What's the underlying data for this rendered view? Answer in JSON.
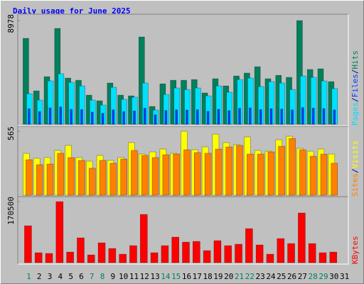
{
  "legend_separator": "/",
  "chart_data": [
    {
      "type": "bar",
      "title": "Daily usage for June 2025",
      "ylim": [
        0,
        8978
      ],
      "yticks": [
        8978
      ],
      "series": [
        {
          "name": "Pages",
          "color": "#00e0ff",
          "values": [
            2640,
            2090,
            3750,
            4370,
            3630,
            3320,
            2090,
            1660,
            3200,
            2150,
            2340,
            3570,
            1230,
            2580,
            3140,
            3010,
            3140,
            2460,
            3320,
            2770,
            3870,
            4000,
            3260,
            3690,
            3570,
            3010,
            4180,
            4060,
            3750,
            3080,
            null
          ]
        },
        {
          "name": "Files",
          "color": "#0040ff",
          "values": [
            1350,
            1100,
            1420,
            1500,
            1300,
            1280,
            1050,
            950,
            1250,
            1100,
            1150,
            1400,
            820,
            1200,
            1250,
            1230,
            1260,
            1120,
            1300,
            1180,
            1380,
            1420,
            1280,
            1350,
            1320,
            1250,
            1450,
            1400,
            1360,
            1240,
            null
          ]
        },
        {
          "name": "Hits",
          "color": "#00805c",
          "values": [
            7440,
            2890,
            4120,
            8300,
            4000,
            3810,
            2520,
            2030,
            3570,
            2520,
            2460,
            7560,
            1540,
            3500,
            3810,
            3810,
            3870,
            2710,
            3940,
            3320,
            4180,
            4430,
            4980,
            3940,
            4240,
            4060,
            8978,
            4740,
            4800,
            3690,
            null
          ]
        }
      ]
    },
    {
      "type": "bar",
      "ylim": [
        0,
        565
      ],
      "yticks": [
        565
      ],
      "series": [
        {
          "name": "Sites",
          "color": "#ff8000",
          "values": [
            314,
            270,
            276,
            371,
            333,
            308,
            239,
            308,
            283,
            320,
            396,
            352,
            333,
            358,
            364,
            402,
            377,
            371,
            408,
            427,
            440,
            364,
            364,
            383,
            433,
            502,
            402,
            345,
            364,
            283,
            null
          ]
        },
        {
          "name": "Visits",
          "color": "#ffff00",
          "values": [
            370,
            327,
            333,
            396,
            440,
            333,
            301,
            352,
            308,
            333,
            465,
            364,
            383,
            408,
            370,
            565,
            402,
            427,
            540,
            465,
            446,
            515,
            396,
            389,
            490,
            521,
            414,
            389,
            408,
            364,
            null
          ]
        }
      ]
    },
    {
      "type": "bar",
      "ylim": [
        0,
        170500
      ],
      "yticks": [
        170500
      ],
      "series": [
        {
          "name": "KBytes",
          "color": "#ff0000",
          "values": [
            103100,
            27800,
            25800,
            170500,
            29700,
            69400,
            21800,
            55500,
            39700,
            23800,
            47600,
            134800,
            27800,
            47600,
            71400,
            57500,
            59500,
            33700,
            61500,
            47600,
            51600,
            95200,
            49600,
            23800,
            67400,
            53500,
            138800,
            53500,
            27800,
            29700,
            null
          ]
        }
      ],
      "categories": [
        "1",
        "2",
        "3",
        "4",
        "5",
        "6",
        "7",
        "8",
        "9",
        "10",
        "11",
        "12",
        "13",
        "14",
        "15",
        "16",
        "17",
        "18",
        "19",
        "20",
        "21",
        "22",
        "23",
        "24",
        "25",
        "26",
        "27",
        "28",
        "29",
        "30",
        "31"
      ],
      "category_colors": [
        "#00805c",
        "#000000",
        "#000000",
        "#000000",
        "#000000",
        "#000000",
        "#00805c",
        "#00805c",
        "#000000",
        "#000000",
        "#000000",
        "#000000",
        "#000000",
        "#00805c",
        "#00805c",
        "#000000",
        "#000000",
        "#000000",
        "#000000",
        "#000000",
        "#00805c",
        "#00805c",
        "#000000",
        "#000000",
        "#000000",
        "#000000",
        "#000000",
        "#00805c",
        "#00805c",
        "#000000",
        "#000000"
      ]
    }
  ]
}
